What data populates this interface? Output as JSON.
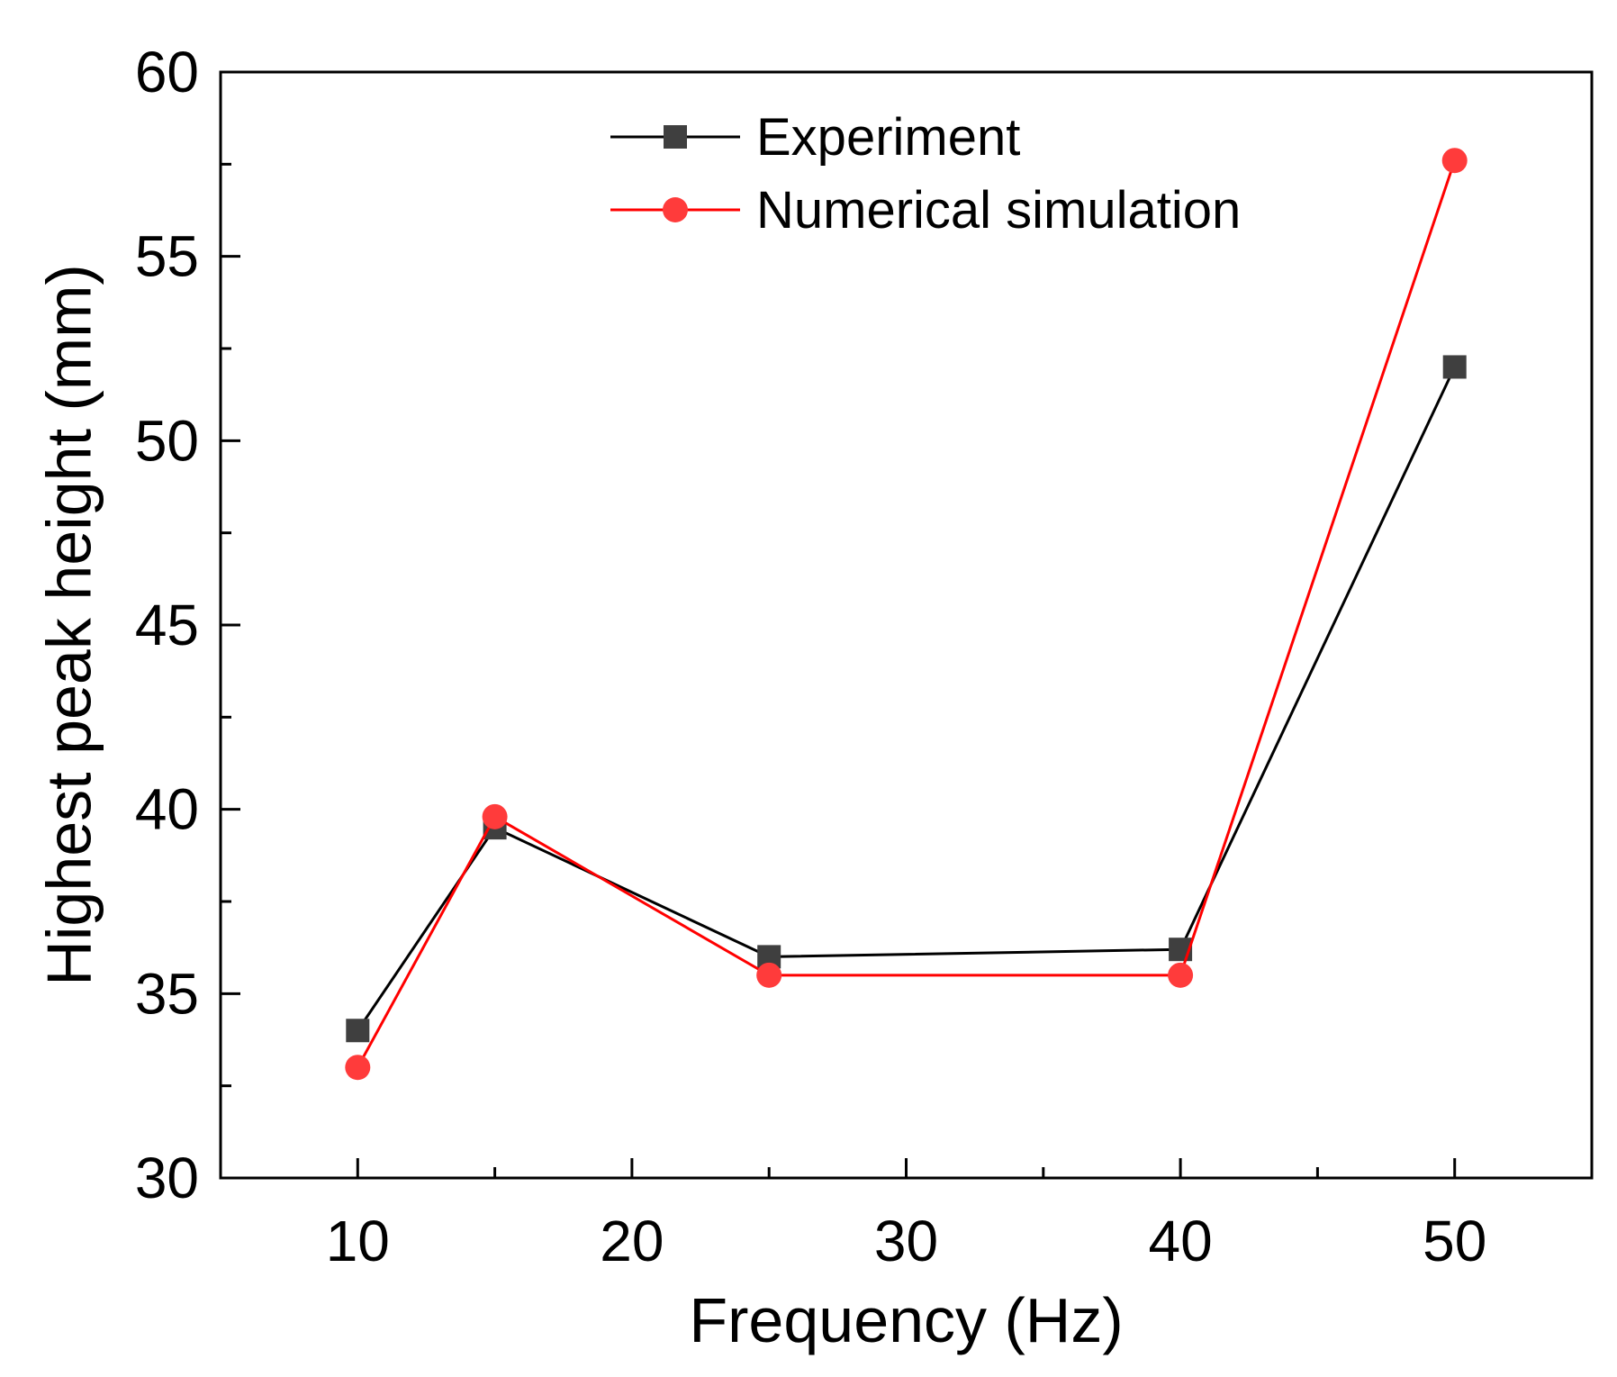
{
  "chart_data": {
    "type": "line",
    "title": "",
    "xlabel": "Frequency (Hz)",
    "ylabel": "Highest peak height (mm)",
    "xlim": [
      5,
      55
    ],
    "ylim": [
      30,
      60
    ],
    "xticks": [
      10,
      20,
      30,
      40,
      50
    ],
    "yticks": [
      30,
      35,
      40,
      45,
      50,
      55,
      60
    ],
    "x_minor_step": 5,
    "y_minor_step": 2.5,
    "grid": false,
    "legend_position": "top-center",
    "series": [
      {
        "name": "Experiment",
        "marker": "square",
        "color": "#3f3f3f",
        "line_color": "#000000",
        "x": [
          10,
          15,
          25,
          40,
          50
        ],
        "y": [
          34.0,
          39.5,
          36.0,
          36.2,
          52.0
        ]
      },
      {
        "name": "Numerical simulation",
        "marker": "circle",
        "color": "#ff3b3b",
        "line_color": "#ff0000",
        "x": [
          10,
          15,
          25,
          40,
          50
        ],
        "y": [
          33.0,
          39.8,
          35.5,
          35.5,
          57.6
        ]
      }
    ]
  }
}
